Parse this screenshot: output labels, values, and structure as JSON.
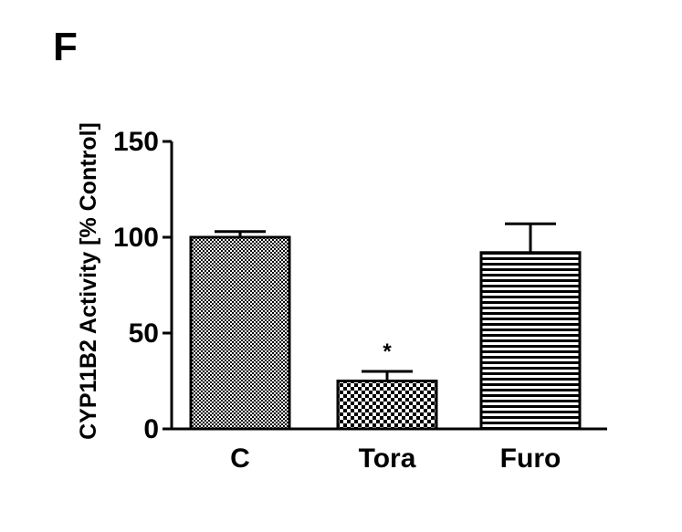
{
  "panel_label": "F",
  "chart_data": {
    "type": "bar",
    "categories": [
      "C",
      "Tora",
      "Furo"
    ],
    "values": [
      100,
      25,
      92
    ],
    "errors": [
      3,
      5,
      15
    ],
    "significance": [
      "",
      "*",
      ""
    ],
    "ylabel": "CYP11B2 Activity [% Control]",
    "xlabel": "",
    "ylim": [
      0,
      150
    ],
    "yticks": [
      0,
      50,
      100,
      150
    ],
    "bar_patterns": [
      "fine-checker",
      "coarse-checker",
      "horizontal-lines"
    ],
    "colors": {
      "bar_ink": "#000000",
      "bar_paper": "#ffffff"
    }
  }
}
